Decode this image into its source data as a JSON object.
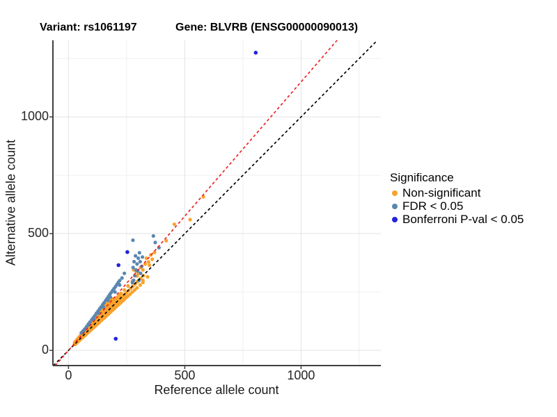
{
  "legend": {
    "title": "Significance",
    "position": "right"
  },
  "chart_data": {
    "type": "scatter",
    "title_left": "Variant: rs1061197",
    "title_right": "Gene: BLVRB (ENSG00000090013)",
    "xlabel": "Reference allele count",
    "ylabel": "Alternative allele count",
    "xlim": [
      -67,
      1343
    ],
    "ylim": [
      -65,
      1328
    ],
    "x_ticks": [
      0,
      500,
      1000
    ],
    "y_ticks": [
      0,
      500,
      1000
    ],
    "minor_gridlines": [
      250,
      750,
      1250
    ],
    "grid": "on",
    "colors": {
      "background": "#ffffff",
      "grid_major": "#e3e3e3",
      "grid_minor": "#f0f0f0",
      "axis_line": "#404040",
      "identity_line": "#000000",
      "fit_line": "#ee2222"
    },
    "lines": [
      {
        "name": "identity",
        "slope": 1.0,
        "intercept": 0,
        "color": "#000000",
        "style": "dashed"
      },
      {
        "name": "fit",
        "slope": 1.15,
        "intercept": 0,
        "color": "#ee2222",
        "style": "dashed"
      }
    ],
    "series": [
      {
        "name": "Non-significant",
        "color": "#f9a22b",
        "radius": 2.6,
        "points": [
          [
            28,
            25
          ],
          [
            30,
            28
          ],
          [
            28,
            30
          ],
          [
            26,
            33
          ],
          [
            33,
            30
          ],
          [
            35,
            33
          ],
          [
            33,
            36
          ],
          [
            31,
            39
          ],
          [
            38,
            35
          ],
          [
            40,
            38
          ],
          [
            38,
            41
          ],
          [
            36,
            45
          ],
          [
            43,
            39
          ],
          [
            45,
            43
          ],
          [
            43,
            46
          ],
          [
            41,
            51
          ],
          [
            48,
            44
          ],
          [
            50,
            48
          ],
          [
            48,
            52
          ],
          [
            46,
            57
          ],
          [
            53,
            48
          ],
          [
            55,
            53
          ],
          [
            53,
            57
          ],
          [
            51,
            63
          ],
          [
            58,
            53
          ],
          [
            60,
            58
          ],
          [
            58,
            63
          ],
          [
            56,
            68
          ],
          [
            63,
            57
          ],
          [
            65,
            63
          ],
          [
            63,
            68
          ],
          [
            61,
            74
          ],
          [
            68,
            62
          ],
          [
            70,
            68
          ],
          [
            68,
            73
          ],
          [
            66,
            80
          ],
          [
            73,
            66
          ],
          [
            75,
            73
          ],
          [
            73,
            79
          ],
          [
            71,
            86
          ],
          [
            78,
            71
          ],
          [
            80,
            78
          ],
          [
            78,
            84
          ],
          [
            76,
            92
          ],
          [
            83,
            76
          ],
          [
            85,
            83
          ],
          [
            83,
            90
          ],
          [
            81,
            98
          ],
          [
            88,
            80
          ],
          [
            90,
            88
          ],
          [
            88,
            95
          ],
          [
            86,
            104
          ],
          [
            93,
            85
          ],
          [
            95,
            93
          ],
          [
            93,
            100
          ],
          [
            91,
            110
          ],
          [
            98,
            89
          ],
          [
            100,
            98
          ],
          [
            98,
            106
          ],
          [
            96,
            116
          ],
          [
            103,
            94
          ],
          [
            105,
            103
          ],
          [
            103,
            111
          ],
          [
            101,
            122
          ],
          [
            108,
            98
          ],
          [
            110,
            108
          ],
          [
            108,
            117
          ],
          [
            106,
            127
          ],
          [
            113,
            103
          ],
          [
            115,
            113
          ],
          [
            113,
            122
          ],
          [
            111,
            133
          ],
          [
            118,
            107
          ],
          [
            120,
            118
          ],
          [
            118,
            127
          ],
          [
            116,
            139
          ],
          [
            123,
            112
          ],
          [
            125,
            123
          ],
          [
            123,
            133
          ],
          [
            121,
            145
          ],
          [
            128,
            116
          ],
          [
            130,
            128
          ],
          [
            128,
            138
          ],
          [
            126,
            151
          ],
          [
            133,
            121
          ],
          [
            135,
            133
          ],
          [
            133,
            144
          ],
          [
            131,
            157
          ],
          [
            138,
            126
          ],
          [
            140,
            138
          ],
          [
            138,
            149
          ],
          [
            136,
            163
          ],
          [
            143,
            130
          ],
          [
            145,
            143
          ],
          [
            143,
            154
          ],
          [
            141,
            169
          ],
          [
            148,
            135
          ],
          [
            150,
            148
          ],
          [
            148,
            160
          ],
          [
            146,
            175
          ],
          [
            153,
            139
          ],
          [
            155,
            153
          ],
          [
            153,
            165
          ],
          [
            151,
            181
          ],
          [
            158,
            144
          ],
          [
            160,
            158
          ],
          [
            158,
            171
          ],
          [
            156,
            186
          ],
          [
            163,
            148
          ],
          [
            165,
            163
          ],
          [
            163,
            176
          ],
          [
            161,
            192
          ],
          [
            168,
            153
          ],
          [
            170,
            168
          ],
          [
            168,
            181
          ],
          [
            166,
            198
          ],
          [
            173,
            157
          ],
          [
            175,
            173
          ],
          [
            173,
            187
          ],
          [
            171,
            204
          ],
          [
            178,
            162
          ],
          [
            180,
            178
          ],
          [
            178,
            192
          ],
          [
            176,
            210
          ],
          [
            183,
            167
          ],
          [
            185,
            183
          ],
          [
            183,
            198
          ],
          [
            181,
            216
          ],
          [
            188,
            171
          ],
          [
            190,
            188
          ],
          [
            188,
            203
          ],
          [
            186,
            222
          ],
          [
            193,
            176
          ],
          [
            195,
            193
          ],
          [
            193,
            208
          ],
          [
            198,
            180
          ],
          [
            200,
            198
          ],
          [
            198,
            214
          ],
          [
            205,
            187
          ],
          [
            207,
            205
          ],
          [
            205,
            221
          ],
          [
            212,
            193
          ],
          [
            214,
            212
          ],
          [
            212,
            229
          ],
          [
            219,
            199
          ],
          [
            221,
            219
          ],
          [
            219,
            237
          ],
          [
            226,
            206
          ],
          [
            228,
            226
          ],
          [
            226,
            244
          ],
          [
            233,
            212
          ],
          [
            235,
            233
          ],
          [
            240,
            218
          ],
          [
            242,
            240
          ],
          [
            240,
            259
          ],
          [
            248,
            226
          ],
          [
            250,
            248
          ],
          [
            256,
            233
          ],
          [
            258,
            256
          ],
          [
            256,
            276
          ],
          [
            265,
            241
          ],
          [
            267,
            265
          ],
          [
            275,
            250
          ],
          [
            277,
            275
          ],
          [
            275,
            297
          ],
          [
            285,
            259
          ],
          [
            287,
            285
          ],
          [
            295,
            268
          ],
          [
            297,
            295
          ],
          [
            295,
            319
          ],
          [
            308,
            280
          ],
          [
            310,
            308
          ],
          [
            320,
            291
          ],
          [
            322,
            320
          ],
          [
            300,
            330
          ],
          [
            310,
            355
          ],
          [
            320,
            345
          ],
          [
            330,
            370
          ],
          [
            344,
            379
          ],
          [
            354,
            409
          ],
          [
            335,
            395
          ],
          [
            348,
            365
          ],
          [
            360,
            390
          ],
          [
            370,
            420
          ],
          [
            290,
            340
          ],
          [
            280,
            345
          ],
          [
            320,
            300
          ],
          [
            340,
            315
          ],
          [
            420,
            470
          ],
          [
            455,
            540
          ],
          [
            523,
            560
          ],
          [
            580,
            658
          ]
        ]
      },
      {
        "name": "FDR < 0.05",
        "color": "#5a87b0",
        "radius": 2.6,
        "points": [
          [
            55,
            75
          ],
          [
            62,
            82
          ],
          [
            70,
            92
          ],
          [
            78,
            102
          ],
          [
            85,
            112
          ],
          [
            92,
            121
          ],
          [
            100,
            132
          ],
          [
            107,
            141
          ],
          [
            114,
            150
          ],
          [
            120,
            159
          ],
          [
            127,
            168
          ],
          [
            134,
            178
          ],
          [
            140,
            186
          ],
          [
            147,
            196
          ],
          [
            153,
            204
          ],
          [
            160,
            214
          ],
          [
            166,
            222
          ],
          [
            172,
            231
          ],
          [
            178,
            240
          ],
          [
            184,
            248
          ],
          [
            190,
            257
          ],
          [
            196,
            265
          ],
          [
            202,
            273
          ],
          [
            208,
            282
          ],
          [
            214,
            291
          ],
          [
            220,
            299
          ],
          [
            150,
            185
          ],
          [
            130,
            160
          ],
          [
            110,
            135
          ],
          [
            90,
            110
          ],
          [
            75,
            95
          ],
          [
            65,
            85
          ],
          [
            170,
            215
          ],
          [
            180,
            228
          ],
          [
            200,
            250
          ],
          [
            220,
            280
          ],
          [
            230,
            310
          ],
          [
            240,
            330
          ],
          [
            280,
            300
          ],
          [
            285,
            320
          ],
          [
            290,
            345
          ],
          [
            295,
            370
          ],
          [
            300,
            395
          ],
          [
            305,
            418
          ],
          [
            288,
            405
          ],
          [
            282,
            380
          ],
          [
            278,
            355
          ],
          [
            298,
            340
          ],
          [
            308,
            380
          ],
          [
            315,
            360
          ],
          [
            303,
            300
          ],
          [
            310,
            330
          ],
          [
            275,
            290
          ],
          [
            318,
            400
          ],
          [
            277,
            472
          ],
          [
            365,
            490
          ],
          [
            373,
            462
          ],
          [
            389,
            440
          ]
        ]
      },
      {
        "name": "Bonferroni P-val < 0.05",
        "color": "#2323dc",
        "radius": 2.8,
        "points": [
          [
            805,
            1275
          ],
          [
            253,
            421
          ],
          [
            215,
            365
          ],
          [
            203,
            50
          ]
        ]
      }
    ]
  }
}
